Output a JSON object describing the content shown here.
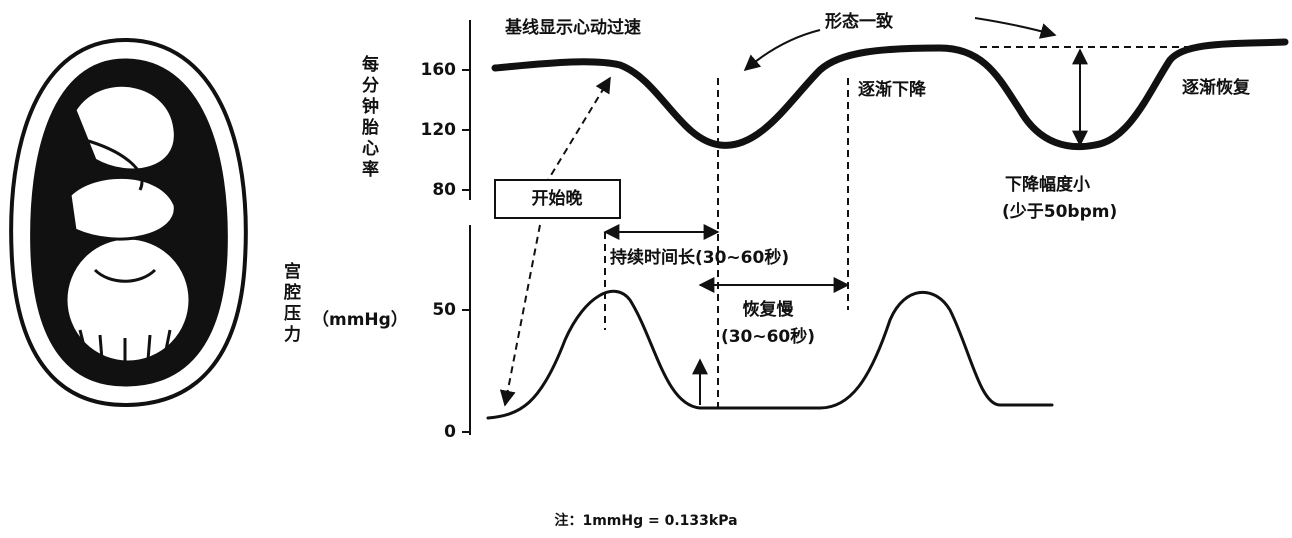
{
  "fhr_axis": {
    "label": "每分钟胎心率",
    "ticks": [
      "160",
      "120",
      "80"
    ]
  },
  "uc_axis": {
    "label": "宫腔压力",
    "unit": "（mmHg）",
    "ticks": [
      "50",
      "0"
    ]
  },
  "annotations": {
    "baseline": "基线显示心动过速",
    "same_shape": "形态一致",
    "gradual_drop": "逐渐下降",
    "gradual_recover": "逐渐恢复",
    "small_drop": "下降幅度小",
    "small_drop_note": "(少于50bpm)",
    "late_start": "开始晚",
    "duration": "持续时间长(30~60秒)",
    "slow_recovery": "恢复慢",
    "slow_recovery_note": "(30~60秒)"
  },
  "note": "注：1mmHg = 0.133kPa"
}
